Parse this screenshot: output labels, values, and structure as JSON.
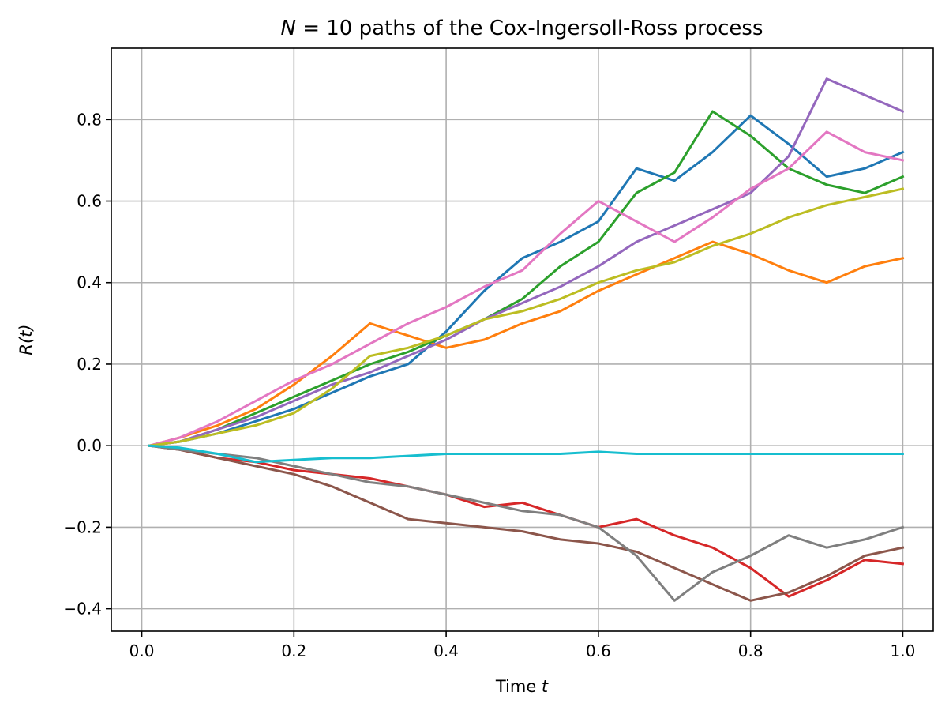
{
  "chart_data": {
    "type": "line",
    "title_prefix": "N",
    "title_rest": " = 10 paths of the Cox-Ingersoll-Ross process",
    "xlabel_text": "Time ",
    "xlabel_var": "t",
    "ylabel_text": "R(t)",
    "xlim": [
      -0.04,
      1.04
    ],
    "ylim": [
      -0.455,
      0.975
    ],
    "xticks": [
      0.0,
      0.2,
      0.4,
      0.6,
      0.8,
      1.0
    ],
    "xtick_labels": [
      "0.0",
      "0.2",
      "0.4",
      "0.6",
      "0.8",
      "1.0"
    ],
    "yticks": [
      -0.4,
      -0.2,
      0.0,
      0.2,
      0.4,
      0.6,
      0.8
    ],
    "ytick_labels": [
      "−0.4",
      "−0.2",
      "0.0",
      "0.2",
      "0.4",
      "0.6",
      "0.8"
    ],
    "grid": true,
    "x": [
      0.01,
      0.05,
      0.1,
      0.15,
      0.2,
      0.25,
      0.3,
      0.35,
      0.4,
      0.45,
      0.5,
      0.55,
      0.6,
      0.65,
      0.7,
      0.75,
      0.8,
      0.85,
      0.9,
      0.95,
      1.0
    ],
    "series_colors": [
      "#1f77b4",
      "#ff7f0e",
      "#2ca02c",
      "#d62728",
      "#9467bd",
      "#8c564b",
      "#e377c2",
      "#7f7f7f",
      "#bcbd22",
      "#17becf"
    ],
    "series": [
      {
        "values": [
          0,
          0.01,
          0.03,
          0.06,
          0.09,
          0.13,
          0.17,
          0.2,
          0.28,
          0.38,
          0.46,
          0.5,
          0.55,
          0.68,
          0.65,
          0.72,
          0.81,
          0.74,
          0.66,
          0.68,
          0.72
        ]
      },
      {
        "values": [
          0,
          0.02,
          0.05,
          0.09,
          0.15,
          0.22,
          0.3,
          0.27,
          0.24,
          0.26,
          0.3,
          0.33,
          0.38,
          0.42,
          0.46,
          0.5,
          0.47,
          0.43,
          0.4,
          0.44,
          0.46
        ]
      },
      {
        "values": [
          0,
          0.01,
          0.04,
          0.08,
          0.12,
          0.16,
          0.2,
          0.23,
          0.27,
          0.31,
          0.36,
          0.44,
          0.5,
          0.62,
          0.67,
          0.82,
          0.76,
          0.68,
          0.64,
          0.62,
          0.66
        ]
      },
      {
        "values": [
          0,
          -0.01,
          -0.03,
          -0.04,
          -0.06,
          -0.07,
          -0.08,
          -0.1,
          -0.12,
          -0.15,
          -0.14,
          -0.17,
          -0.2,
          -0.18,
          -0.22,
          -0.25,
          -0.3,
          -0.37,
          -0.33,
          -0.28,
          -0.29
        ]
      },
      {
        "values": [
          0,
          0.01,
          0.04,
          0.07,
          0.11,
          0.15,
          0.18,
          0.22,
          0.26,
          0.31,
          0.35,
          0.39,
          0.44,
          0.5,
          0.54,
          0.58,
          0.62,
          0.71,
          0.9,
          0.86,
          0.82
        ]
      },
      {
        "values": [
          0,
          -0.01,
          -0.03,
          -0.05,
          -0.07,
          -0.1,
          -0.14,
          -0.18,
          -0.19,
          -0.2,
          -0.21,
          -0.23,
          -0.24,
          -0.26,
          -0.3,
          -0.34,
          -0.38,
          -0.36,
          -0.32,
          -0.27,
          -0.25
        ]
      },
      {
        "values": [
          0,
          0.02,
          0.06,
          0.11,
          0.16,
          0.2,
          0.25,
          0.3,
          0.34,
          0.39,
          0.43,
          0.52,
          0.6,
          0.55,
          0.5,
          0.56,
          0.63,
          0.68,
          0.77,
          0.72,
          0.7
        ]
      },
      {
        "values": [
          0,
          -0.01,
          -0.02,
          -0.03,
          -0.05,
          -0.07,
          -0.09,
          -0.1,
          -0.12,
          -0.14,
          -0.16,
          -0.17,
          -0.2,
          -0.27,
          -0.38,
          -0.31,
          -0.27,
          -0.22,
          -0.25,
          -0.23,
          -0.2
        ]
      },
      {
        "values": [
          0,
          0.01,
          0.03,
          0.05,
          0.08,
          0.14,
          0.22,
          0.24,
          0.27,
          0.31,
          0.33,
          0.36,
          0.4,
          0.43,
          0.45,
          0.49,
          0.52,
          0.56,
          0.59,
          0.61,
          0.63
        ]
      },
      {
        "values": [
          0,
          -0.005,
          -0.02,
          -0.04,
          -0.035,
          -0.03,
          -0.03,
          -0.025,
          -0.02,
          -0.02,
          -0.02,
          -0.02,
          -0.015,
          -0.02,
          -0.02,
          -0.02,
          -0.02,
          -0.02,
          -0.02,
          -0.02,
          -0.02
        ]
      }
    ]
  }
}
